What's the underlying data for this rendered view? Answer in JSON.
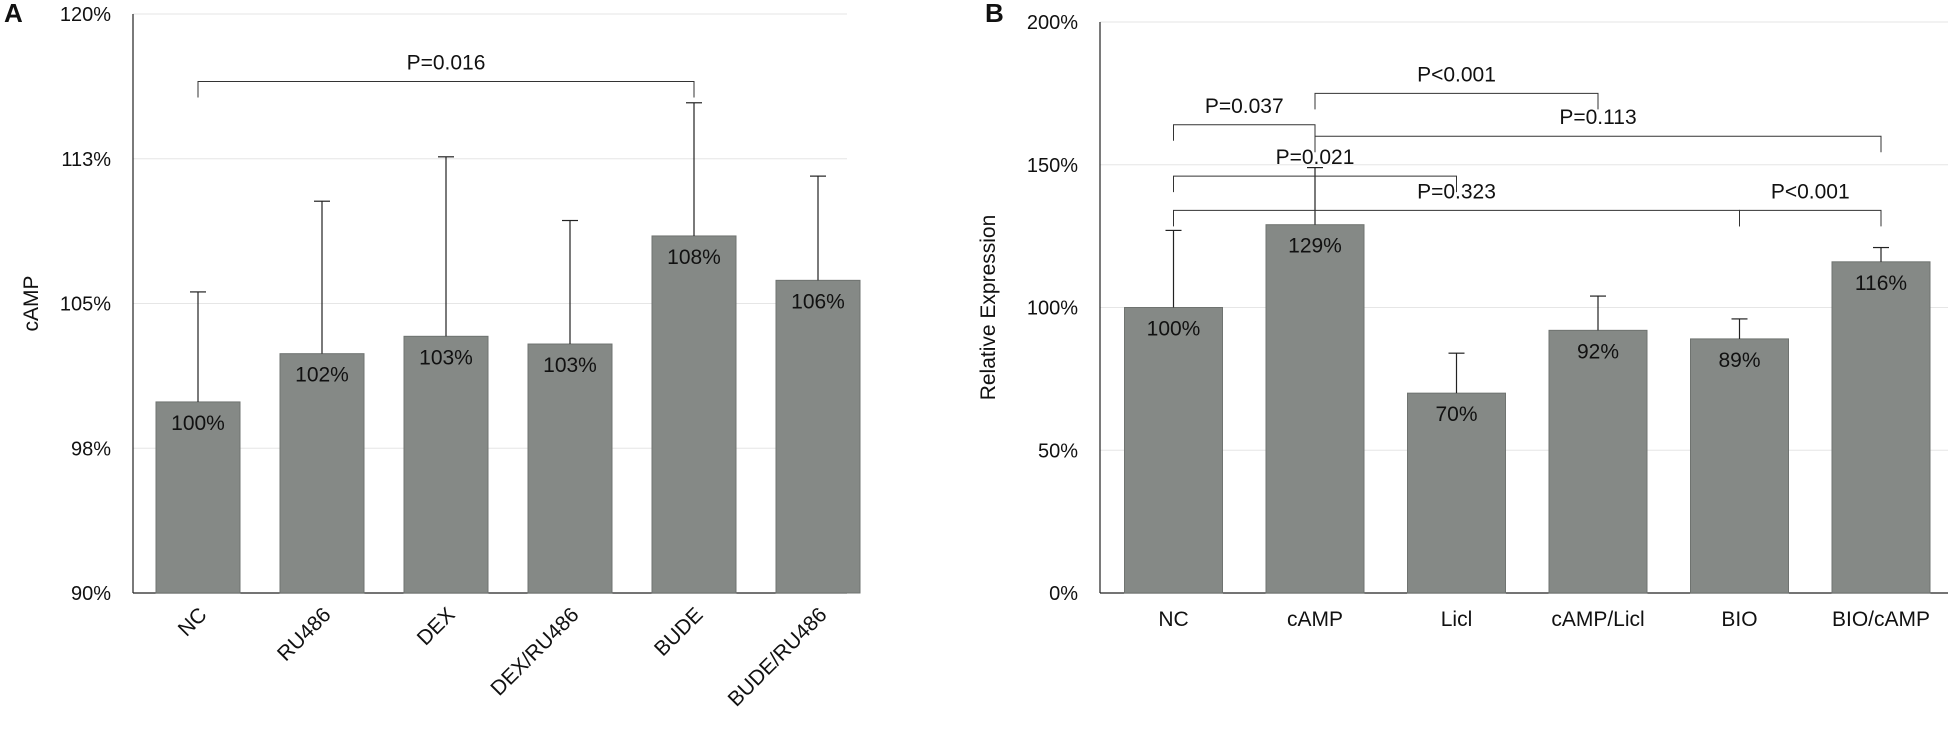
{
  "chart_data": [
    {
      "panel": "A",
      "type": "bar",
      "title": "",
      "xlabel": "",
      "ylabel": "cAMP",
      "ylim": [
        90,
        120
      ],
      "yticks": [
        {
          "value": 90,
          "label": "90%"
        },
        {
          "value": 97.5,
          "label": "98%"
        },
        {
          "value": 105,
          "label": "105%"
        },
        {
          "value": 112.5,
          "label": "113%"
        },
        {
          "value": 120,
          "label": "120%"
        }
      ],
      "categories": [
        "NC",
        "RU486",
        "DEX",
        "DEX/RU486",
        "BUDE",
        "BUDE/RU486"
      ],
      "values": [
        99.9,
        102.4,
        103.3,
        102.9,
        108.5,
        106.2
      ],
      "value_labels": [
        "100%",
        "102%",
        "103%",
        "103%",
        "108%",
        "106%"
      ],
      "errors": [
        5.7,
        7.9,
        9.3,
        6.4,
        6.9,
        5.4
      ],
      "grid": true,
      "brackets": [
        {
          "from": 0,
          "to": 4,
          "y": 116.5,
          "label": "P=0.016"
        }
      ]
    },
    {
      "panel": "B",
      "type": "bar",
      "title": "",
      "xlabel": "",
      "ylabel": "Relative Expression",
      "ylim": [
        0,
        200
      ],
      "yticks": [
        {
          "value": 0,
          "label": "0%"
        },
        {
          "value": 50,
          "label": "50%"
        },
        {
          "value": 100,
          "label": "100%"
        },
        {
          "value": 150,
          "label": "150%"
        },
        {
          "value": 200,
          "label": "200%"
        }
      ],
      "categories": [
        "NC",
        "cAMP",
        "Licl",
        "cAMP/Licl",
        "BIO",
        "BIO/cAMP"
      ],
      "values": [
        100,
        129,
        70,
        92,
        89,
        116
      ],
      "value_labels": [
        "100%",
        "129%",
        "70%",
        "92%",
        "89%",
        "116%"
      ],
      "errors": [
        27,
        20,
        14,
        12,
        7,
        5
      ],
      "grid": true,
      "brackets": [
        {
          "from": 1,
          "to": 3,
          "y": 175,
          "label": "P<0.001"
        },
        {
          "from": 0,
          "to": 1,
          "y": 164,
          "label": "P=0.037"
        },
        {
          "from": 1,
          "to": 5,
          "y": 160,
          "label": "P=0.113"
        },
        {
          "from": 0,
          "to": 2,
          "y": 146,
          "label": "P=0.021"
        },
        {
          "from": 0,
          "to": 4,
          "y": 134,
          "label": "P=0.323"
        },
        {
          "from": 4,
          "to": 5,
          "y": 134,
          "label": "P<0.001"
        }
      ]
    }
  ]
}
